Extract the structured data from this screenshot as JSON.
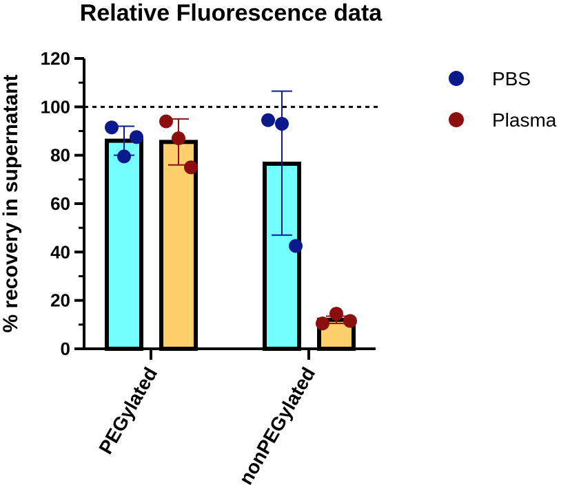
{
  "chart_data": {
    "type": "bar",
    "title": "Relative Fluorescence data",
    "ylabel": "% recovery in supernatant",
    "xlabel": "",
    "ylim": [
      0,
      120
    ],
    "yticks": [
      0,
      20,
      40,
      60,
      80,
      100,
      120
    ],
    "categories": [
      "PEGylated",
      "nonPEGylated"
    ],
    "reference_line": 100,
    "legend_position": "top-right",
    "series": [
      {
        "name": "PBS",
        "bar_color": "#73ffff",
        "point_color": "#0a1a8c",
        "error_color": "#0a1a8c",
        "values": [
          86,
          76.5
        ],
        "error_upper": [
          92,
          106.5
        ],
        "error_lower": [
          80,
          47
        ],
        "points": [
          [
            91.5,
            79.5,
            87.5
          ],
          [
            94.5,
            93,
            42.5
          ]
        ]
      },
      {
        "name": "Plasma",
        "bar_color": "#ffcf6e",
        "point_color": "#8b0f0f",
        "error_color": "#8b0f0f",
        "values": [
          85.5,
          12
        ],
        "error_upper": [
          95,
          13.5
        ],
        "error_lower": [
          76,
          10.5
        ],
        "points": [
          [
            94,
            87,
            75
          ],
          [
            10.5,
            14.5,
            11.5
          ]
        ]
      }
    ]
  }
}
